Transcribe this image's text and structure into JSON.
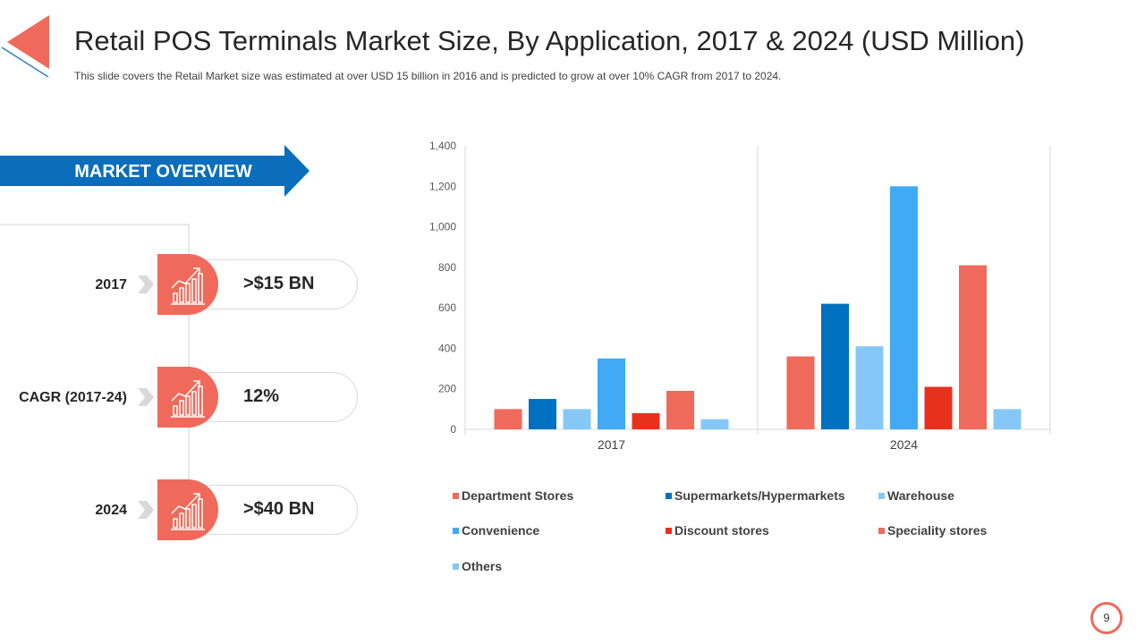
{
  "slide": {
    "title": "Retail POS Terminals Market Size, By Application, 2017 & 2024 (USD Million)",
    "subtitle": "This slide covers the Retail Market size was estimated at over  USD 15 billion in 2016 and is predicted  to grow  at over  10% CAGR from  2017 to 2024.",
    "page_number": "9"
  },
  "overview": {
    "label": "MARKET OVERVIEW",
    "stats": [
      {
        "label": "2017",
        "value": ">$15 BN",
        "icon": "growth-chart-icon"
      },
      {
        "label": "CAGR (2017-24)",
        "value": "12%",
        "icon": "growth-chart-icon"
      },
      {
        "label": "2024",
        "value": ">$40 BN",
        "icon": "growth-chart-icon"
      }
    ]
  },
  "colors": {
    "accent": "#ef6a5a",
    "primary_blue": "#0070c0",
    "arrow_blue": "#0a6ebd"
  },
  "chart_data": {
    "type": "bar",
    "title": "",
    "xlabel": "",
    "ylabel": "",
    "ylim": [
      0,
      1400
    ],
    "yticks": [
      0,
      200,
      400,
      600,
      800,
      1000,
      1200,
      1400
    ],
    "ytick_labels": [
      "0",
      "200",
      "400",
      "600",
      "800",
      "1,000",
      "1,200",
      "1,400"
    ],
    "categories": [
      "2017",
      "2024"
    ],
    "legend_position": "bottom",
    "series": [
      {
        "name": "Department Stores",
        "color": "#ef6a5a",
        "values": [
          100,
          360
        ]
      },
      {
        "name": "Supermarkets/Hypermarkets",
        "color": "#0070c0",
        "values": [
          150,
          620
        ]
      },
      {
        "name": "Warehouse",
        "color": "#85c8f7",
        "values": [
          100,
          410
        ]
      },
      {
        "name": "Convenience",
        "color": "#40aaf5",
        "values": [
          350,
          1200
        ]
      },
      {
        "name": "Discount stores",
        "color": "#e8311c",
        "values": [
          80,
          210
        ]
      },
      {
        "name": "Speciality stores",
        "color": "#ef6a5a",
        "values": [
          190,
          810
        ]
      },
      {
        "name": "Others",
        "color": "#85c8f7",
        "values": [
          50,
          100
        ]
      }
    ]
  }
}
